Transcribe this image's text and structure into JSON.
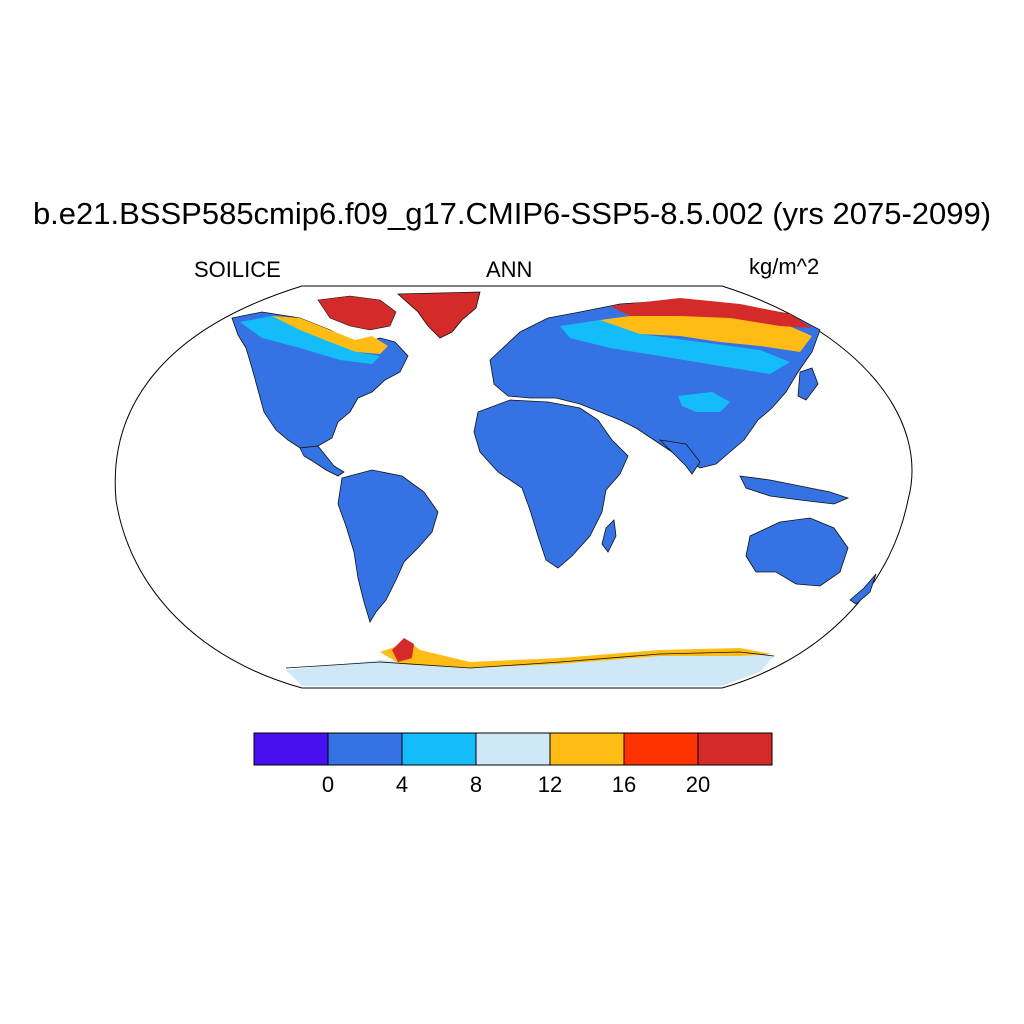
{
  "title": "b.e21.BSSP585cmip6.f09_g17.CMIP6-SSP5-8.5.002 (yrs 2075-2099)",
  "left_label": "SOILICE",
  "center_label": "ANN",
  "right_label": "kg/m^2",
  "colorbar": {
    "colors": [
      "#4710f0",
      "#3573e4",
      "#14bdfa",
      "#cfe8f8",
      "#ffbc14",
      "#ff3300",
      "#d42a2a"
    ],
    "levels": [
      "0",
      "4",
      "8",
      "12",
      "16",
      "20"
    ]
  },
  "map": {
    "projection": "Robinson-like world",
    "land_color": "#3573e4",
    "notes_colors": {
      "high": "#d42a2a",
      "mid_high": "#ff3300",
      "mid": "#ffbc14",
      "low_mid": "#cfe8f8",
      "low": "#14bdfa"
    }
  }
}
